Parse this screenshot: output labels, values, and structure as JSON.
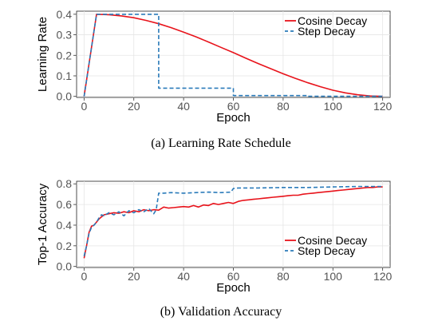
{
  "chart_data": [
    {
      "type": "line",
      "caption": "(a) Learning Rate Schedule",
      "xlabel": "Epoch",
      "ylabel": "Learning Rate",
      "xlim": [
        -3,
        123
      ],
      "ylim": [
        -0.005,
        0.415
      ],
      "xticks": [
        "0",
        "20",
        "40",
        "60",
        "80",
        "100",
        "120"
      ],
      "yticks": [
        "0.0",
        "0.1",
        "0.2",
        "0.3",
        "0.4"
      ],
      "grid": true,
      "legend_position": "top-right",
      "series": [
        {
          "name": "Cosine Decay",
          "color": "#e8131b",
          "style": "solid",
          "x": [
            0,
            5,
            10,
            15,
            20,
            25,
            30,
            35,
            40,
            45,
            50,
            55,
            60,
            65,
            70,
            75,
            80,
            85,
            90,
            95,
            100,
            105,
            110,
            115,
            120
          ],
          "y": [
            0.0,
            0.4,
            0.398,
            0.392,
            0.383,
            0.37,
            0.354,
            0.335,
            0.313,
            0.29,
            0.265,
            0.239,
            0.213,
            0.186,
            0.16,
            0.135,
            0.11,
            0.087,
            0.066,
            0.047,
            0.03,
            0.017,
            0.008,
            0.002,
            0.0
          ]
        },
        {
          "name": "Step Decay",
          "color": "#2b7bba",
          "style": "dashed",
          "x": [
            0,
            5,
            30,
            30,
            60,
            60,
            90,
            90,
            120
          ],
          "y": [
            0.0,
            0.4,
            0.4,
            0.04,
            0.04,
            0.004,
            0.004,
            0.0004,
            0.0004
          ]
        }
      ]
    },
    {
      "type": "line",
      "caption": "(b) Validation Accuracy",
      "xlabel": "Epoch",
      "ylabel": "Top-1 Accuracy",
      "xlim": [
        -3,
        123
      ],
      "ylim": [
        -0.01,
        0.825
      ],
      "xticks": [
        "0",
        "20",
        "40",
        "60",
        "80",
        "100",
        "120"
      ],
      "yticks": [
        "0.0",
        "0.2",
        "0.4",
        "0.6",
        "0.8"
      ],
      "grid": true,
      "legend_position": "bottom-right",
      "series": [
        {
          "name": "Cosine Decay",
          "color": "#e8131b",
          "style": "solid",
          "x": [
            0,
            1,
            2,
            3,
            4,
            5,
            6,
            7,
            8,
            10,
            12,
            14,
            16,
            18,
            20,
            22,
            24,
            26,
            28,
            30,
            32,
            34,
            36,
            38,
            40,
            42,
            44,
            46,
            48,
            50,
            52,
            54,
            56,
            58,
            60,
            62,
            64,
            66,
            68,
            70,
            72,
            74,
            76,
            78,
            80,
            82,
            84,
            86,
            88,
            90,
            92,
            94,
            96,
            98,
            100,
            102,
            104,
            106,
            108,
            110,
            112,
            114,
            116,
            118,
            120
          ],
          "y": [
            0.08,
            0.2,
            0.33,
            0.39,
            0.4,
            0.43,
            0.46,
            0.48,
            0.5,
            0.51,
            0.52,
            0.515,
            0.53,
            0.52,
            0.54,
            0.53,
            0.55,
            0.54,
            0.55,
            0.545,
            0.575,
            0.565,
            0.57,
            0.575,
            0.58,
            0.575,
            0.59,
            0.575,
            0.595,
            0.59,
            0.61,
            0.6,
            0.61,
            0.62,
            0.61,
            0.63,
            0.64,
            0.645,
            0.65,
            0.655,
            0.66,
            0.665,
            0.67,
            0.675,
            0.68,
            0.685,
            0.69,
            0.69,
            0.7,
            0.705,
            0.71,
            0.715,
            0.72,
            0.725,
            0.73,
            0.735,
            0.74,
            0.745,
            0.75,
            0.755,
            0.76,
            0.765,
            0.765,
            0.77,
            0.77
          ]
        },
        {
          "name": "Step Decay",
          "color": "#2b7bba",
          "style": "dashed",
          "x": [
            0,
            1,
            2,
            3,
            4,
            5,
            6,
            7,
            8,
            10,
            12,
            14,
            16,
            18,
            20,
            22,
            24,
            26,
            28,
            29,
            30,
            32,
            35,
            40,
            45,
            50,
            55,
            59,
            60,
            62,
            70,
            80,
            90,
            100,
            110,
            120
          ],
          "y": [
            0.1,
            0.2,
            0.32,
            0.38,
            0.4,
            0.43,
            0.47,
            0.5,
            0.49,
            0.52,
            0.5,
            0.53,
            0.49,
            0.54,
            0.52,
            0.55,
            0.53,
            0.56,
            0.51,
            0.55,
            0.71,
            0.71,
            0.715,
            0.71,
            0.715,
            0.72,
            0.715,
            0.72,
            0.755,
            0.76,
            0.76,
            0.765,
            0.765,
            0.77,
            0.775,
            0.775
          ]
        }
      ]
    }
  ]
}
